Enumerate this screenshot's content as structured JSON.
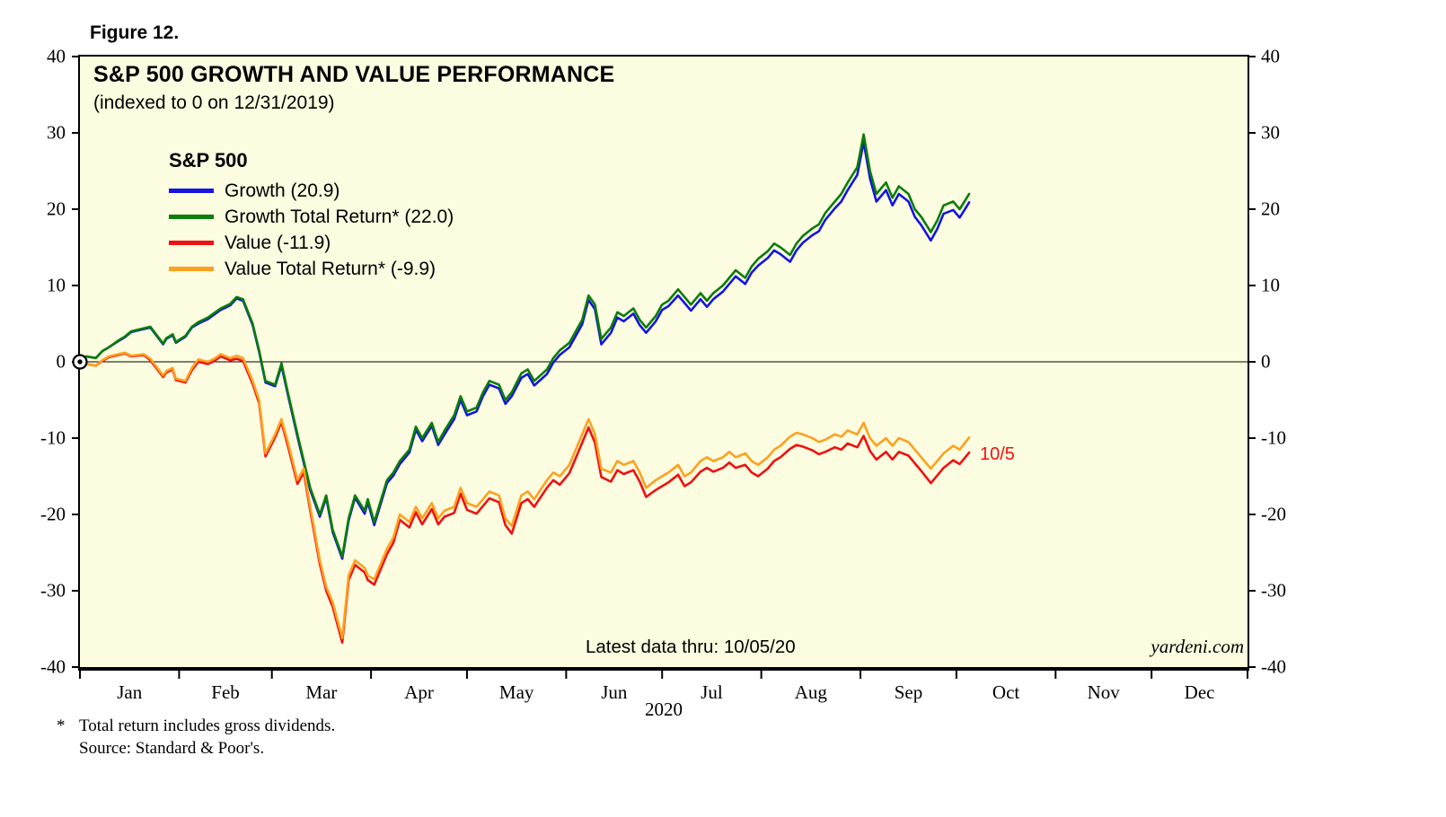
{
  "figure_label": "Figure 12.",
  "title": "S&P 500 GROWTH AND VALUE PERFORMANCE",
  "subtitle": "(indexed to 0 on 12/31/2019)",
  "legend": {
    "heading": "S&P 500"
  },
  "annotations": {
    "latest_data": "Latest data thru: 10/05/20",
    "watermark": "yardeni.com",
    "last_point_label": "10/5"
  },
  "footnotes": {
    "marker": "*",
    "total_return": "Total return includes gross dividends.",
    "source": "Source: Standard & Poor's."
  },
  "colors": {
    "plot_background": "#FCFCE0",
    "axis": "#000000"
  },
  "chart_data": {
    "type": "line",
    "title": "S&P 500 GROWTH AND VALUE PERFORMANCE",
    "subtitle": "(indexed to 0 on 12/31/2019)",
    "x_unit": "day_of_year_2020",
    "xlim": [
      1,
      366
    ],
    "ylim": [
      -40,
      40
    ],
    "grid": false,
    "legend_position": "top-left-inside",
    "y_ticks": [
      40,
      30,
      20,
      10,
      0,
      -10,
      -20,
      -30,
      -40
    ],
    "x_month_labels": [
      "Jan",
      "Feb",
      "Mar",
      "Apr",
      "May",
      "Jun",
      "Jul",
      "Aug",
      "Sep",
      "Oct",
      "Nov",
      "Dec"
    ],
    "month_start_days": [
      1,
      32,
      61,
      92,
      122,
      153,
      183,
      214,
      245,
      275,
      306,
      336,
      366
    ],
    "x_axis_year": "2020",
    "days": [
      1,
      3,
      6,
      8,
      10,
      13,
      15,
      17,
      21,
      23,
      27,
      28,
      30,
      31,
      34,
      36,
      38,
      41,
      43,
      45,
      48,
      50,
      52,
      55,
      57,
      59,
      62,
      64,
      66,
      69,
      71,
      73,
      76,
      78,
      80,
      83,
      85,
      87,
      90,
      91,
      93,
      97,
      99,
      101,
      104,
      106,
      108,
      111,
      113,
      115,
      118,
      120,
      122,
      125,
      127,
      129,
      132,
      134,
      136,
      139,
      141,
      143,
      147,
      149,
      151,
      154,
      156,
      158,
      160,
      162,
      164,
      167,
      169,
      171,
      174,
      176,
      178,
      181,
      183,
      185,
      188,
      190,
      192,
      195,
      197,
      199,
      202,
      204,
      206,
      209,
      211,
      213,
      216,
      218,
      220,
      223,
      225,
      227,
      230,
      232,
      234,
      237,
      239,
      241,
      244,
      246,
      248,
      250,
      253,
      255,
      257,
      260,
      262,
      264,
      267,
      269,
      271,
      274,
      276,
      279
    ],
    "series": [
      {
        "name": "Growth",
        "label": "Growth (20.9)",
        "final_value": 20.9,
        "color": "#1414E0",
        "values": [
          0.0,
          0.7,
          0.5,
          1.4,
          1.9,
          2.7,
          3.2,
          3.9,
          4.3,
          4.5,
          2.3,
          3.0,
          3.5,
          2.5,
          3.3,
          4.5,
          5.0,
          5.6,
          6.2,
          6.8,
          7.4,
          8.3,
          8.0,
          4.8,
          1.3,
          -2.7,
          -3.2,
          -0.5,
          -4.3,
          -9.8,
          -13.3,
          -16.8,
          -20.3,
          -17.8,
          -22.3,
          -25.8,
          -20.8,
          -17.8,
          -19.9,
          -18.4,
          -21.4,
          -15.9,
          -14.9,
          -13.4,
          -11.9,
          -8.9,
          -10.4,
          -8.4,
          -10.9,
          -9.5,
          -7.5,
          -5.0,
          -7.0,
          -6.5,
          -4.5,
          -3.0,
          -3.5,
          -5.5,
          -4.5,
          -2.1,
          -1.6,
          -3.1,
          -1.6,
          -0.1,
          0.9,
          1.9,
          3.4,
          4.9,
          8.1,
          6.9,
          2.3,
          3.8,
          5.8,
          5.3,
          6.3,
          4.8,
          3.8,
          5.3,
          6.8,
          7.3,
          8.7,
          7.7,
          6.7,
          8.2,
          7.2,
          8.2,
          9.2,
          10.2,
          11.2,
          10.2,
          11.7,
          12.6,
          13.6,
          14.6,
          14.1,
          13.1,
          14.6,
          15.6,
          16.6,
          17.1,
          18.6,
          20.1,
          21.0,
          22.5,
          24.5,
          28.8,
          24.0,
          21.0,
          22.5,
          20.5,
          22.0,
          21.0,
          19.0,
          17.9,
          15.9,
          17.4,
          19.4,
          19.9,
          18.9,
          20.9
        ]
      },
      {
        "name": "Growth Total Return",
        "label": "Growth Total Return* (22.0)",
        "final_value": 22.0,
        "color": "#0A7D0A",
        "values": [
          0.0,
          0.7,
          0.5,
          1.4,
          1.9,
          2.8,
          3.3,
          4.0,
          4.4,
          4.6,
          2.4,
          3.1,
          3.6,
          2.6,
          3.4,
          4.6,
          5.2,
          5.8,
          6.4,
          7.0,
          7.6,
          8.5,
          8.2,
          5.0,
          1.5,
          -2.5,
          -3.0,
          -0.2,
          -4.0,
          -9.5,
          -13.0,
          -16.5,
          -20.0,
          -17.5,
          -22.0,
          -25.5,
          -20.5,
          -17.5,
          -19.5,
          -18.0,
          -21.0,
          -15.5,
          -14.5,
          -13.0,
          -11.5,
          -8.5,
          -10.0,
          -8.0,
          -10.5,
          -9.0,
          -7.0,
          -4.5,
          -6.5,
          -6.0,
          -4.0,
          -2.5,
          -3.0,
          -5.0,
          -4.0,
          -1.5,
          -1.0,
          -2.5,
          -1.0,
          0.5,
          1.5,
          2.5,
          4.0,
          5.5,
          8.7,
          7.5,
          3.0,
          4.5,
          6.5,
          6.0,
          7.0,
          5.5,
          4.5,
          6.0,
          7.5,
          8.0,
          9.5,
          8.5,
          7.5,
          9.0,
          8.0,
          9.0,
          10.0,
          11.0,
          12.0,
          11.0,
          12.5,
          13.5,
          14.5,
          15.5,
          15.0,
          14.0,
          15.5,
          16.5,
          17.5,
          18.0,
          19.5,
          21.0,
          22.0,
          23.5,
          25.5,
          29.8,
          25.0,
          22.0,
          23.5,
          21.5,
          23.0,
          22.0,
          20.0,
          19.0,
          17.0,
          18.5,
          20.5,
          21.0,
          20.0,
          22.0
        ]
      },
      {
        "name": "Value",
        "label": "Value (-11.9)",
        "final_value": -11.9,
        "color": "#EE1111",
        "values": [
          0.0,
          -0.3,
          -0.5,
          0.1,
          0.6,
          0.9,
          1.1,
          0.7,
          0.9,
          0.2,
          -2.0,
          -1.4,
          -1.0,
          -2.4,
          -2.7,
          -1.1,
          0.0,
          -0.3,
          0.1,
          0.7,
          0.2,
          0.4,
          0.1,
          -2.9,
          -5.4,
          -12.4,
          -9.9,
          -7.9,
          -11.0,
          -16.0,
          -14.5,
          -19.5,
          -26.5,
          -30.0,
          -32.1,
          -36.8,
          -28.6,
          -26.6,
          -27.6,
          -28.6,
          -29.2,
          -25.2,
          -23.7,
          -20.7,
          -21.7,
          -19.7,
          -21.3,
          -19.3,
          -21.3,
          -20.3,
          -19.8,
          -17.3,
          -19.4,
          -19.9,
          -18.9,
          -17.9,
          -18.4,
          -21.4,
          -22.5,
          -18.5,
          -18.0,
          -19.0,
          -16.5,
          -15.5,
          -16.1,
          -14.6,
          -12.6,
          -10.6,
          -8.6,
          -10.6,
          -15.1,
          -15.7,
          -14.2,
          -14.7,
          -14.2,
          -15.7,
          -17.7,
          -16.8,
          -16.3,
          -15.8,
          -14.8,
          -16.3,
          -15.8,
          -14.4,
          -13.9,
          -14.4,
          -13.9,
          -13.2,
          -13.9,
          -13.5,
          -14.5,
          -15.0,
          -14.0,
          -13.0,
          -12.5,
          -11.4,
          -10.9,
          -11.1,
          -11.6,
          -12.1,
          -11.8,
          -11.2,
          -11.5,
          -10.7,
          -11.2,
          -9.7,
          -11.7,
          -12.8,
          -11.8,
          -12.8,
          -11.8,
          -12.3,
          -13.3,
          -14.3,
          -15.9,
          -14.9,
          -13.9,
          -12.9,
          -13.4,
          -11.9
        ]
      },
      {
        "name": "Value Total Return",
        "label": "Value Total Return* (-9.9)",
        "final_value": -9.9,
        "color": "#FFA01E",
        "values": [
          0.0,
          -0.3,
          -0.5,
          0.2,
          0.7,
          1.0,
          1.2,
          0.8,
          1.0,
          0.4,
          -1.8,
          -1.2,
          -0.8,
          -2.2,
          -2.5,
          -0.8,
          0.3,
          0.0,
          0.4,
          1.0,
          0.5,
          0.8,
          0.5,
          -2.5,
          -5.0,
          -12.0,
          -9.5,
          -7.5,
          -10.5,
          -15.5,
          -14.0,
          -19.0,
          -26.0,
          -29.5,
          -31.5,
          -36.2,
          -28.0,
          -26.0,
          -27.0,
          -28.0,
          -28.5,
          -24.5,
          -23.0,
          -20.0,
          -21.0,
          -19.0,
          -20.5,
          -18.5,
          -20.5,
          -19.5,
          -19.0,
          -16.5,
          -18.5,
          -19.0,
          -18.0,
          -17.0,
          -17.5,
          -20.5,
          -21.5,
          -17.5,
          -17.0,
          -18.0,
          -15.5,
          -14.5,
          -15.0,
          -13.5,
          -11.5,
          -9.5,
          -7.5,
          -9.5,
          -14.0,
          -14.5,
          -13.0,
          -13.5,
          -13.0,
          -14.5,
          -16.5,
          -15.5,
          -15.0,
          -14.5,
          -13.5,
          -15.0,
          -14.5,
          -13.0,
          -12.5,
          -13.0,
          -12.5,
          -11.8,
          -12.5,
          -12.0,
          -13.0,
          -13.5,
          -12.5,
          -11.5,
          -11.0,
          -9.8,
          -9.3,
          -9.5,
          -10.0,
          -10.5,
          -10.2,
          -9.5,
          -9.8,
          -9.0,
          -9.5,
          -8.0,
          -10.0,
          -11.0,
          -10.0,
          -11.0,
          -10.0,
          -10.5,
          -11.5,
          -12.5,
          -14.0,
          -13.0,
          -12.0,
          -11.0,
          -11.5,
          -9.9
        ]
      }
    ]
  }
}
